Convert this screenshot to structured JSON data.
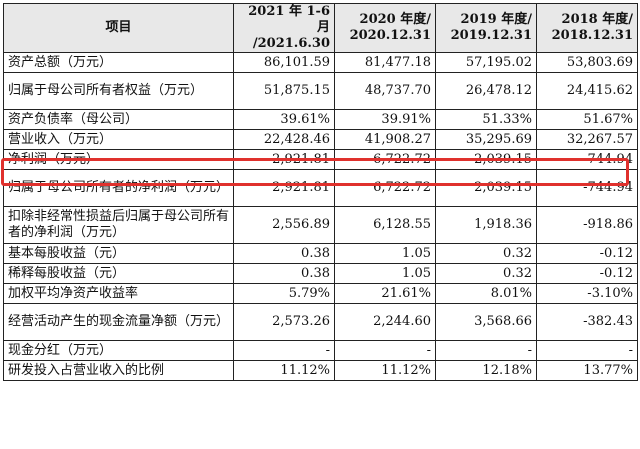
{
  "table": {
    "headers": [
      "项目",
      "2021 年 1-6 月 /2021.6.30",
      "2020 年度/ 2020.12.31",
      "2019 年度/ 2019.12.31",
      "2018 年度/ 2018.12.31"
    ],
    "rows": [
      {
        "label": "资产总额（万元）",
        "values": [
          "86,101.59",
          "81,477.18",
          "57,195.02",
          "53,803.69"
        ]
      },
      {
        "label": "归属于母公司所有者权益（万元）",
        "values": [
          "51,875.15",
          "48,737.70",
          "26,478.12",
          "24,415.62"
        ]
      },
      {
        "label": "资产负债率（母公司）",
        "values": [
          "39.61%",
          "39.91%",
          "51.33%",
          "51.67%"
        ]
      },
      {
        "label": "营业收入（万元）",
        "values": [
          "22,428.46",
          "41,908.27",
          "35,295.69",
          "32,267.57"
        ]
      },
      {
        "label": "净利润（万元）",
        "values": [
          "2,921.81",
          "6,722.72",
          "2,039.15",
          "-744.94"
        ]
      },
      {
        "label": "归属于母公司所有者的净利润（万元）",
        "values": [
          "2,921.81",
          "6,722.72",
          "2,039.15",
          "-744.94"
        ]
      },
      {
        "label": "扣除非经常性损益后归属于母公司所有者的净利润（万元）",
        "values": [
          "2,556.89",
          "6,128.55",
          "1,918.36",
          "-918.86"
        ]
      },
      {
        "label": "基本每股收益（元）",
        "values": [
          "0.38",
          "1.05",
          "0.32",
          "-0.12"
        ]
      },
      {
        "label": "稀释每股收益（元）",
        "values": [
          "0.38",
          "1.05",
          "0.32",
          "-0.12"
        ]
      },
      {
        "label": "加权平均净资产收益率",
        "values": [
          "5.79%",
          "21.61%",
          "8.01%",
          "-3.10%"
        ]
      },
      {
        "label": "经营活动产生的现金流量净额（万元）",
        "values": [
          "2,573.26",
          "2,244.60",
          "3,568.66",
          "-382.43"
        ]
      },
      {
        "label": "现金分红（万元）",
        "values": [
          "-",
          "-",
          "-",
          "-"
        ]
      },
      {
        "label": "研发投入占营业收入的比例",
        "values": [
          "11.12%",
          "11.12%",
          "12.18%",
          "13.77%"
        ]
      }
    ]
  },
  "highlight": {
    "row_label": "净利润（万元）",
    "color": "#e0312d"
  }
}
